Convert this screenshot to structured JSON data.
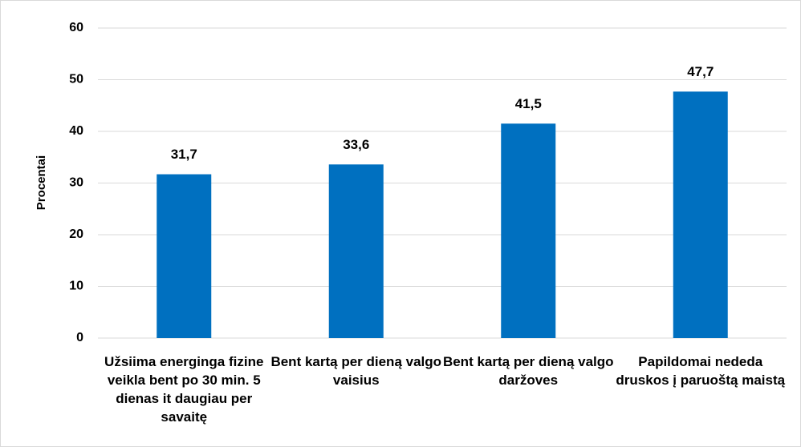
{
  "chart_data": {
    "type": "bar",
    "categories": [
      "Užsiima energinga fizine veikla bent po 30 min. 5 dienas it daugiau per savaitę",
      "Bent kartą per dieną valgo vaisius",
      "Bent kartą per dieną valgo daržoves",
      "Papildomai nededa druskos į paruoštą maistą"
    ],
    "values": [
      31.7,
      33.6,
      41.5,
      47.7
    ],
    "value_labels": [
      "31,7",
      "33,6",
      "41,5",
      "47,7"
    ],
    "color": "#0070c0",
    "ylabel": "Procentai",
    "ylim": [
      0,
      60
    ],
    "yticks": [
      0,
      10,
      20,
      30,
      40,
      50,
      60
    ],
    "grid": true
  }
}
